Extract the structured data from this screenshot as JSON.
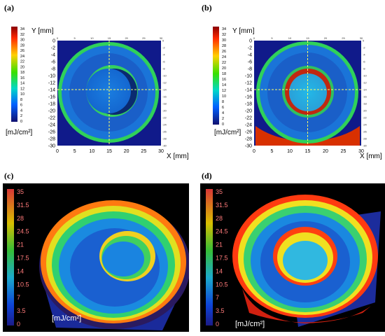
{
  "panels": [
    {
      "letter": "(a)"
    },
    {
      "letter": "(b)"
    },
    {
      "letter": "(c)"
    },
    {
      "letter": "(d)"
    }
  ],
  "chart_data": [
    {
      "type": "heatmap",
      "panel": "(a)",
      "ylabel": "Y [mm]",
      "xlabel": "X [mm]",
      "x_ticks": [
        "0",
        "5",
        "10",
        "15",
        "20",
        "25",
        "30"
      ],
      "y_ticks": [
        "0",
        "-2",
        "-4",
        "-6",
        "-8",
        "-10",
        "-12",
        "-14",
        "-16",
        "-18",
        "-20",
        "-22",
        "-24",
        "-26",
        "-28",
        "-30"
      ],
      "xlim": [
        0,
        30
      ],
      "ylim": [
        -30,
        0
      ],
      "colorbar_ticks": [
        "34",
        "32",
        "30",
        "28",
        "26",
        "24",
        "22",
        "20",
        "18",
        "16",
        "14",
        "12",
        "10",
        "8",
        "6",
        "4",
        "2",
        "0"
      ],
      "colorbar_label": "[mJ/cm²]",
      "colorscale": [
        "#ff0000",
        "#ffff00",
        "#00ff00",
        "#00ffff",
        "#0000ff"
      ],
      "crosshair": {
        "x": 15,
        "y": -14
      }
    },
    {
      "type": "heatmap",
      "panel": "(b)",
      "ylabel": "Y [mm]",
      "xlabel": "X [mm]",
      "x_ticks": [
        "0",
        "5",
        "10",
        "15",
        "20",
        "25",
        "30"
      ],
      "y_ticks": [
        "0",
        "-2",
        "-4",
        "-6",
        "-8",
        "-10",
        "-12",
        "-14",
        "-16",
        "-18",
        "-20",
        "-22",
        "-24",
        "-26",
        "-28",
        "-30"
      ],
      "xlim": [
        0,
        30
      ],
      "ylim": [
        -30,
        0
      ],
      "colorbar_ticks": [
        "34",
        "32",
        "30",
        "28",
        "26",
        "24",
        "22",
        "20",
        "18",
        "16",
        "14",
        "12",
        "10",
        "8",
        "6",
        "4",
        "2",
        "0"
      ],
      "colorbar_label": "[mJ/cm²]",
      "colorscale": [
        "#ff0000",
        "#ffff00",
        "#00ff00",
        "#00ffff",
        "#0000ff"
      ],
      "crosshair": {
        "x": 15,
        "y": -14
      }
    },
    {
      "type": "surface3d",
      "panel": "(c)",
      "colorbar_ticks": [
        "35",
        "31.5",
        "28",
        "24.5",
        "21",
        "17.5",
        "14",
        "10.5",
        "7",
        "3.5",
        "0"
      ],
      "colorbar_label": "[mJ/cm²]",
      "colorscale": [
        "#ff0000",
        "#ffff00",
        "#00ff00",
        "#00ffff",
        "#0000ff"
      ]
    },
    {
      "type": "surface3d",
      "panel": "(d)",
      "colorbar_ticks": [
        "35",
        "31.5",
        "28",
        "24.5",
        "21",
        "17.5",
        "14",
        "10.5",
        "7",
        "3.5",
        "0"
      ],
      "colorbar_label": "[mJ/cm²]",
      "colorscale": [
        "#ff0000",
        "#ffff00",
        "#00ff00",
        "#00ffff",
        "#0000ff"
      ]
    }
  ]
}
